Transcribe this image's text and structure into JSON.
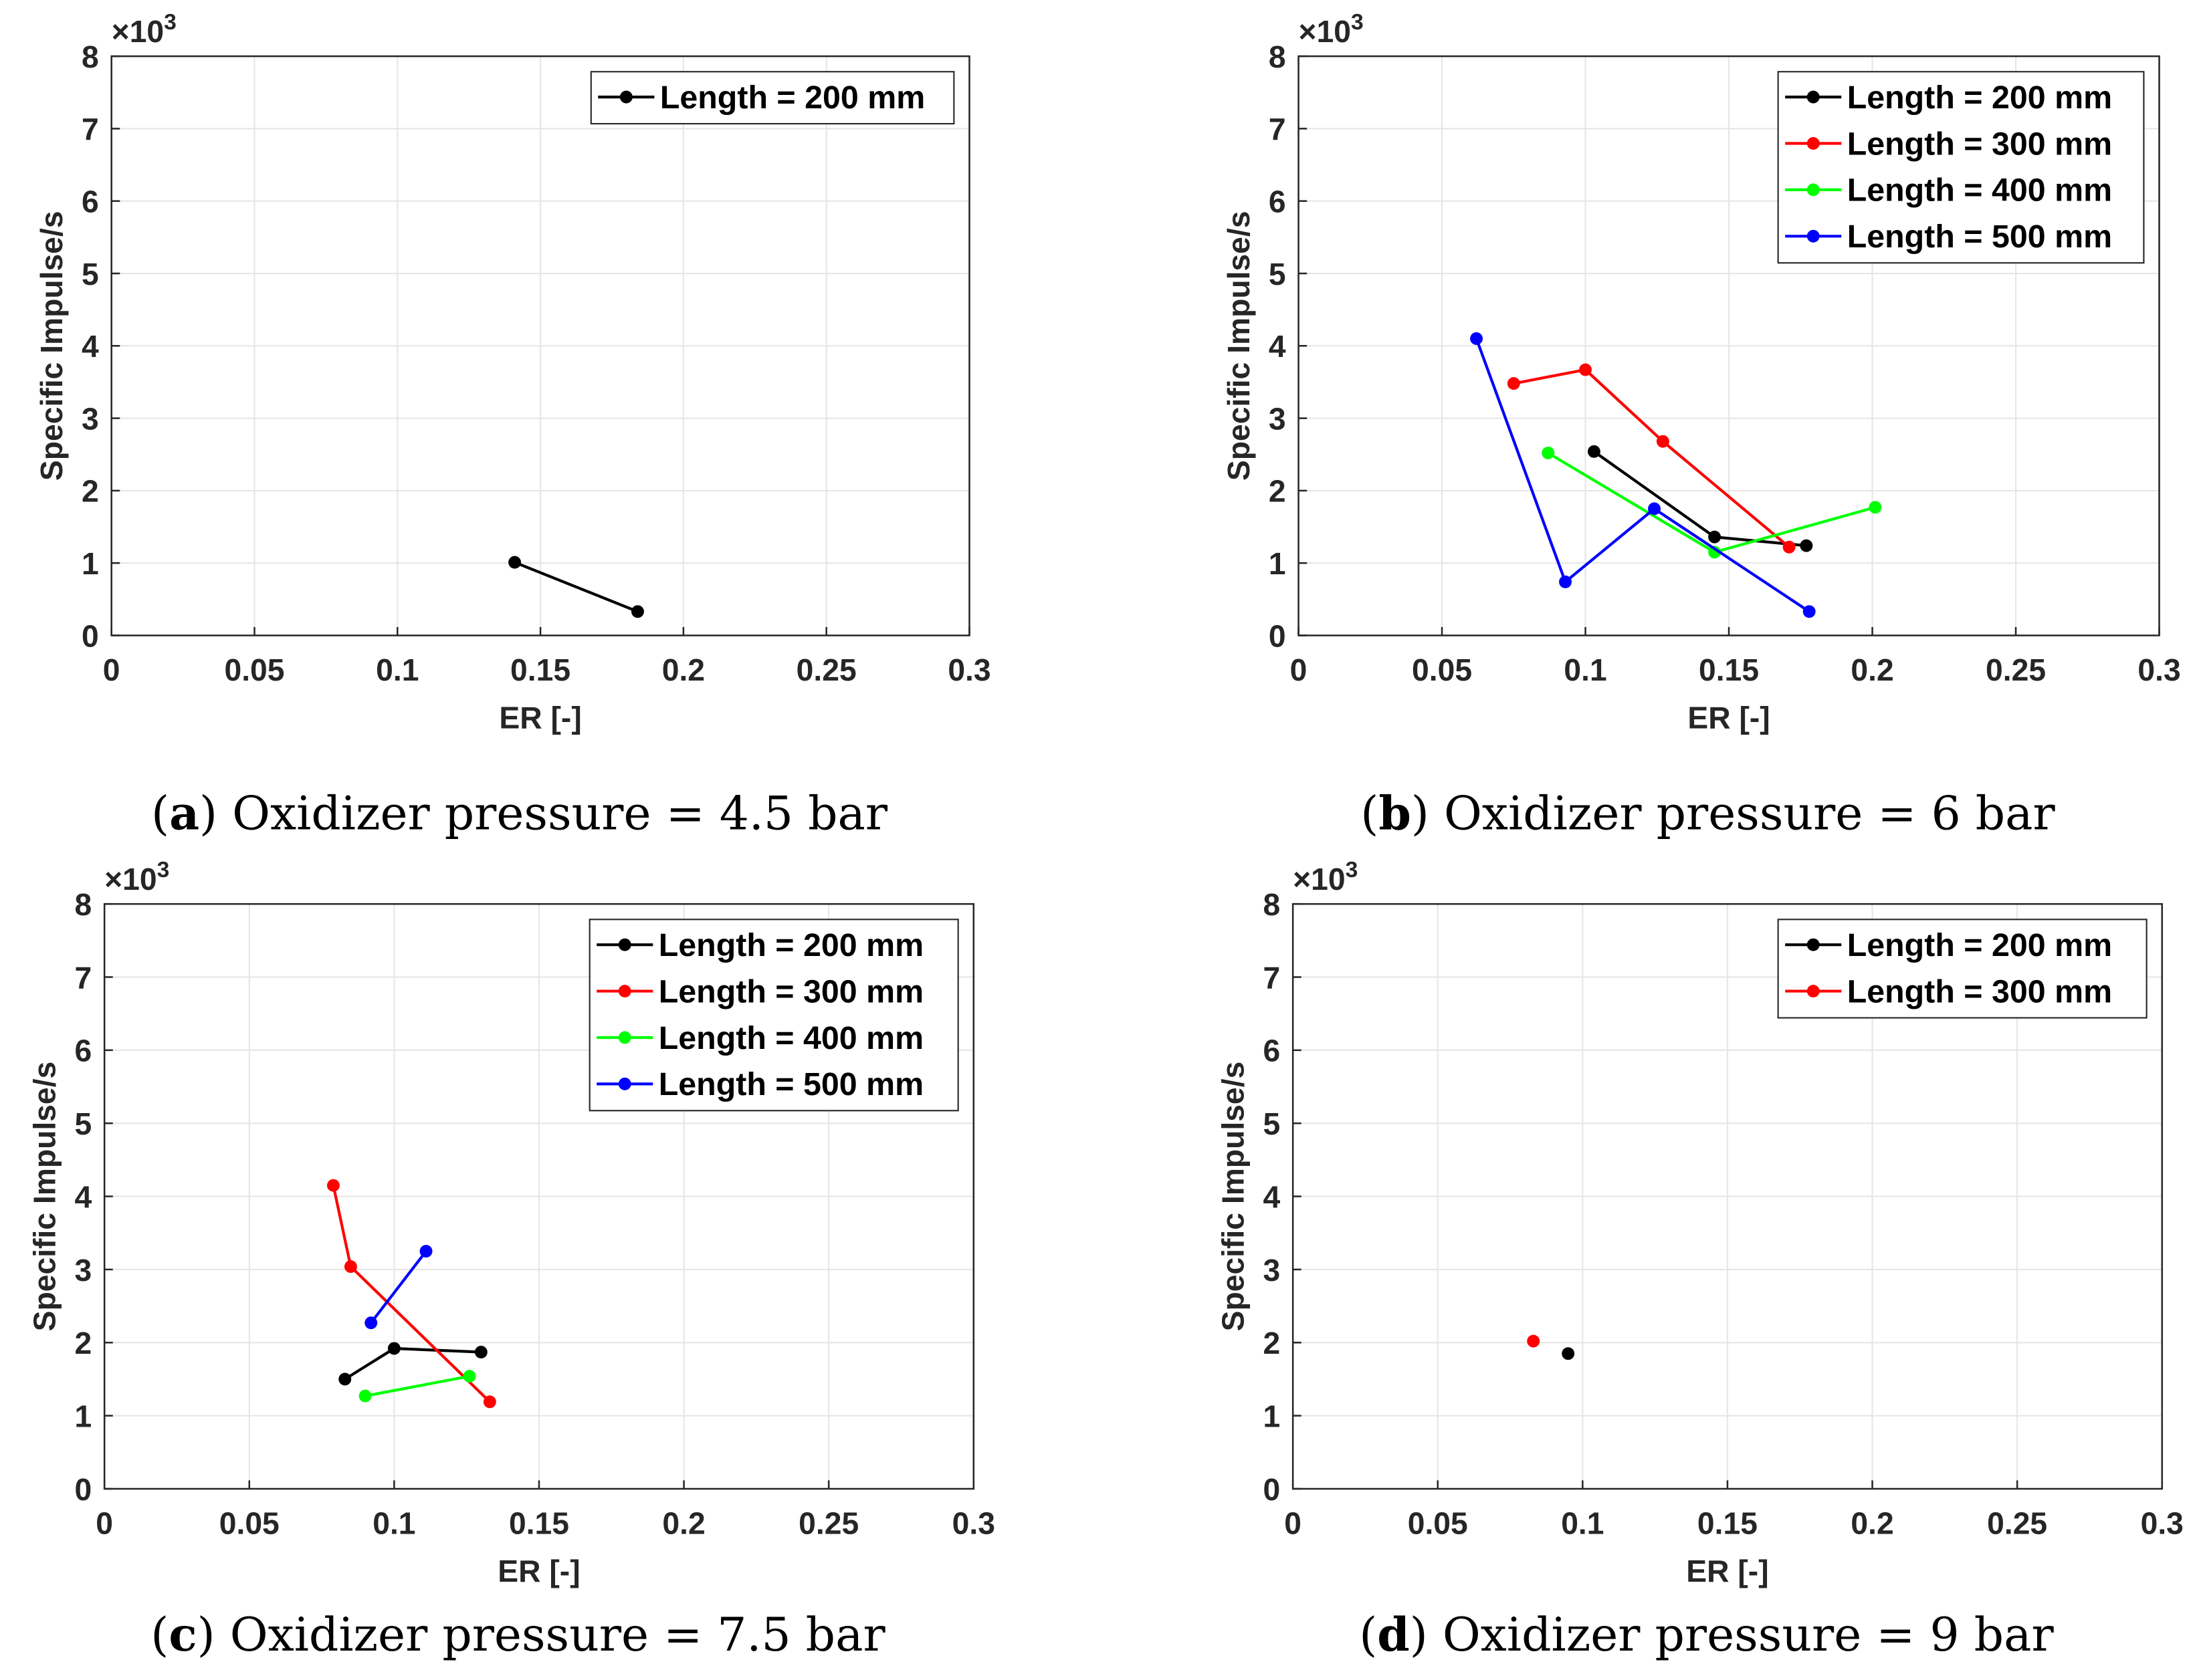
{
  "chart_data": [
    {
      "type": "line",
      "panel": "a",
      "caption_letter": "a",
      "caption_text": "Oxidizer pressure = 4.5 bar",
      "xlabel": "ER [-]",
      "ylabel": "Specific Impulse/s",
      "y_multiplier": "×10",
      "y_exponent": "3",
      "xlim": [
        0,
        0.3
      ],
      "ylim": [
        0,
        8
      ],
      "xticks": [
        "0",
        "0.05",
        "0.1",
        "0.15",
        "0.2",
        "0.25",
        "0.3"
      ],
      "yticks": [
        "0",
        "1",
        "2",
        "3",
        "4",
        "5",
        "6",
        "7",
        "8"
      ],
      "grid": true,
      "legend_position": "top-right",
      "series": [
        {
          "name": "Length = 200 mm",
          "color": "#000000",
          "x": [
            0.141,
            0.184
          ],
          "y": [
            1.01,
            0.33
          ]
        }
      ]
    },
    {
      "type": "line",
      "panel": "b",
      "caption_letter": "b",
      "caption_text": "Oxidizer pressure = 6 bar",
      "xlabel": "ER [-]",
      "ylabel": "Specific Impulse/s",
      "y_multiplier": "×10",
      "y_exponent": "3",
      "xlim": [
        0,
        0.3
      ],
      "ylim": [
        0,
        8
      ],
      "xticks": [
        "0",
        "0.05",
        "0.1",
        "0.15",
        "0.2",
        "0.25",
        "0.3"
      ],
      "yticks": [
        "0",
        "1",
        "2",
        "3",
        "4",
        "5",
        "6",
        "7",
        "8"
      ],
      "grid": true,
      "legend_position": "top-right",
      "series": [
        {
          "name": "Length = 200 mm",
          "color": "#000000",
          "x": [
            0.103,
            0.145,
            0.177
          ],
          "y": [
            2.54,
            1.36,
            1.24
          ]
        },
        {
          "name": "Length = 300 mm",
          "color": "#ff0000",
          "x": [
            0.075,
            0.1,
            0.127,
            0.171
          ],
          "y": [
            3.48,
            3.67,
            2.68,
            1.22
          ]
        },
        {
          "name": "Length = 400 mm",
          "color": "#00ff00",
          "x": [
            0.087,
            0.145,
            0.201
          ],
          "y": [
            2.52,
            1.15,
            1.77
          ]
        },
        {
          "name": "Length = 500 mm",
          "color": "#0000ff",
          "x": [
            0.062,
            0.093,
            0.124,
            0.178
          ],
          "y": [
            4.1,
            0.74,
            1.75,
            0.33
          ]
        }
      ]
    },
    {
      "type": "line",
      "panel": "c",
      "caption_letter": "c",
      "caption_text": "Oxidizer pressure = 7.5 bar",
      "xlabel": "ER [-]",
      "ylabel": "Specific Impulse/s",
      "y_multiplier": "×10",
      "y_exponent": "3",
      "xlim": [
        0,
        0.3
      ],
      "ylim": [
        0,
        8
      ],
      "xticks": [
        "0",
        "0.05",
        "0.1",
        "0.15",
        "0.2",
        "0.25",
        "0.3"
      ],
      "yticks": [
        "0",
        "1",
        "2",
        "3",
        "4",
        "5",
        "6",
        "7",
        "8"
      ],
      "grid": true,
      "legend_position": "top-right",
      "series": [
        {
          "name": "Length = 200 mm",
          "color": "#000000",
          "x": [
            0.083,
            0.1,
            0.13
          ],
          "y": [
            1.5,
            1.92,
            1.87
          ]
        },
        {
          "name": "Length = 300 mm",
          "color": "#ff0000",
          "x": [
            0.079,
            0.085,
            0.133
          ],
          "y": [
            4.15,
            3.04,
            1.19
          ]
        },
        {
          "name": "Length = 400 mm",
          "color": "#00ff00",
          "x": [
            0.09,
            0.126
          ],
          "y": [
            1.27,
            1.54
          ]
        },
        {
          "name": "Length = 500 mm",
          "color": "#0000ff",
          "x": [
            0.092,
            0.111
          ],
          "y": [
            2.27,
            3.25
          ]
        }
      ]
    },
    {
      "type": "scatter",
      "panel": "d",
      "caption_letter": "d",
      "caption_text": "Oxidizer pressure = 9 bar",
      "xlabel": "ER [-]",
      "ylabel": "Specific Impulse/s",
      "y_multiplier": "×10",
      "y_exponent": "3",
      "xlim": [
        0,
        0.3
      ],
      "ylim": [
        0,
        8
      ],
      "xticks": [
        "0",
        "0.05",
        "0.1",
        "0.15",
        "0.2",
        "0.25",
        "0.3"
      ],
      "yticks": [
        "0",
        "1",
        "2",
        "3",
        "4",
        "5",
        "6",
        "7",
        "8"
      ],
      "grid": true,
      "legend_position": "top-right",
      "series": [
        {
          "name": "Length = 200 mm",
          "color": "#000000",
          "x": [
            0.095
          ],
          "y": [
            1.85
          ]
        },
        {
          "name": "Length = 300 mm",
          "color": "#ff0000",
          "x": [
            0.083
          ],
          "y": [
            2.02
          ]
        }
      ]
    }
  ]
}
